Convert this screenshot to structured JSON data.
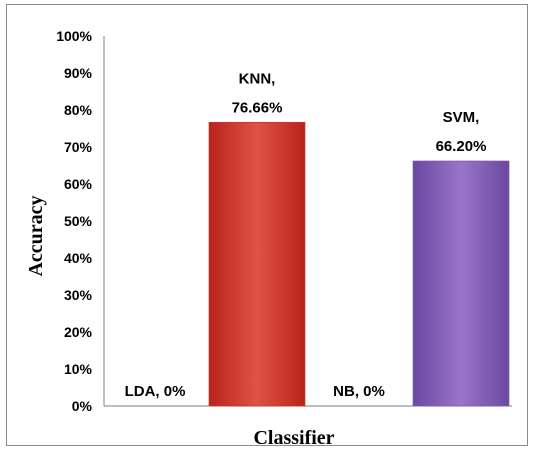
{
  "chart_data": {
    "type": "bar",
    "title": "",
    "xlabel": "Classifier",
    "ylabel": "Accuracy",
    "ylim": [
      0,
      100
    ],
    "y_ticks": [
      "0%",
      "10%",
      "20%",
      "30%",
      "40%",
      "50%",
      "60%",
      "70%",
      "80%",
      "90%",
      "100%"
    ],
    "categories": [
      "LDA",
      "KNN",
      "NB",
      "SVM"
    ],
    "values": [
      0,
      76.66,
      0,
      66.2
    ],
    "data_labels": [
      [
        "LDA, 0%"
      ],
      [
        "KNN,",
        "76.66%"
      ],
      [
        "NB, 0%"
      ],
      [
        "SVM,",
        "66.20%"
      ]
    ],
    "colors": [
      "#4f81bd",
      "#c0392b",
      "#9bbb59",
      "#7b5ba6"
    ],
    "grid": false,
    "legend": "none"
  }
}
